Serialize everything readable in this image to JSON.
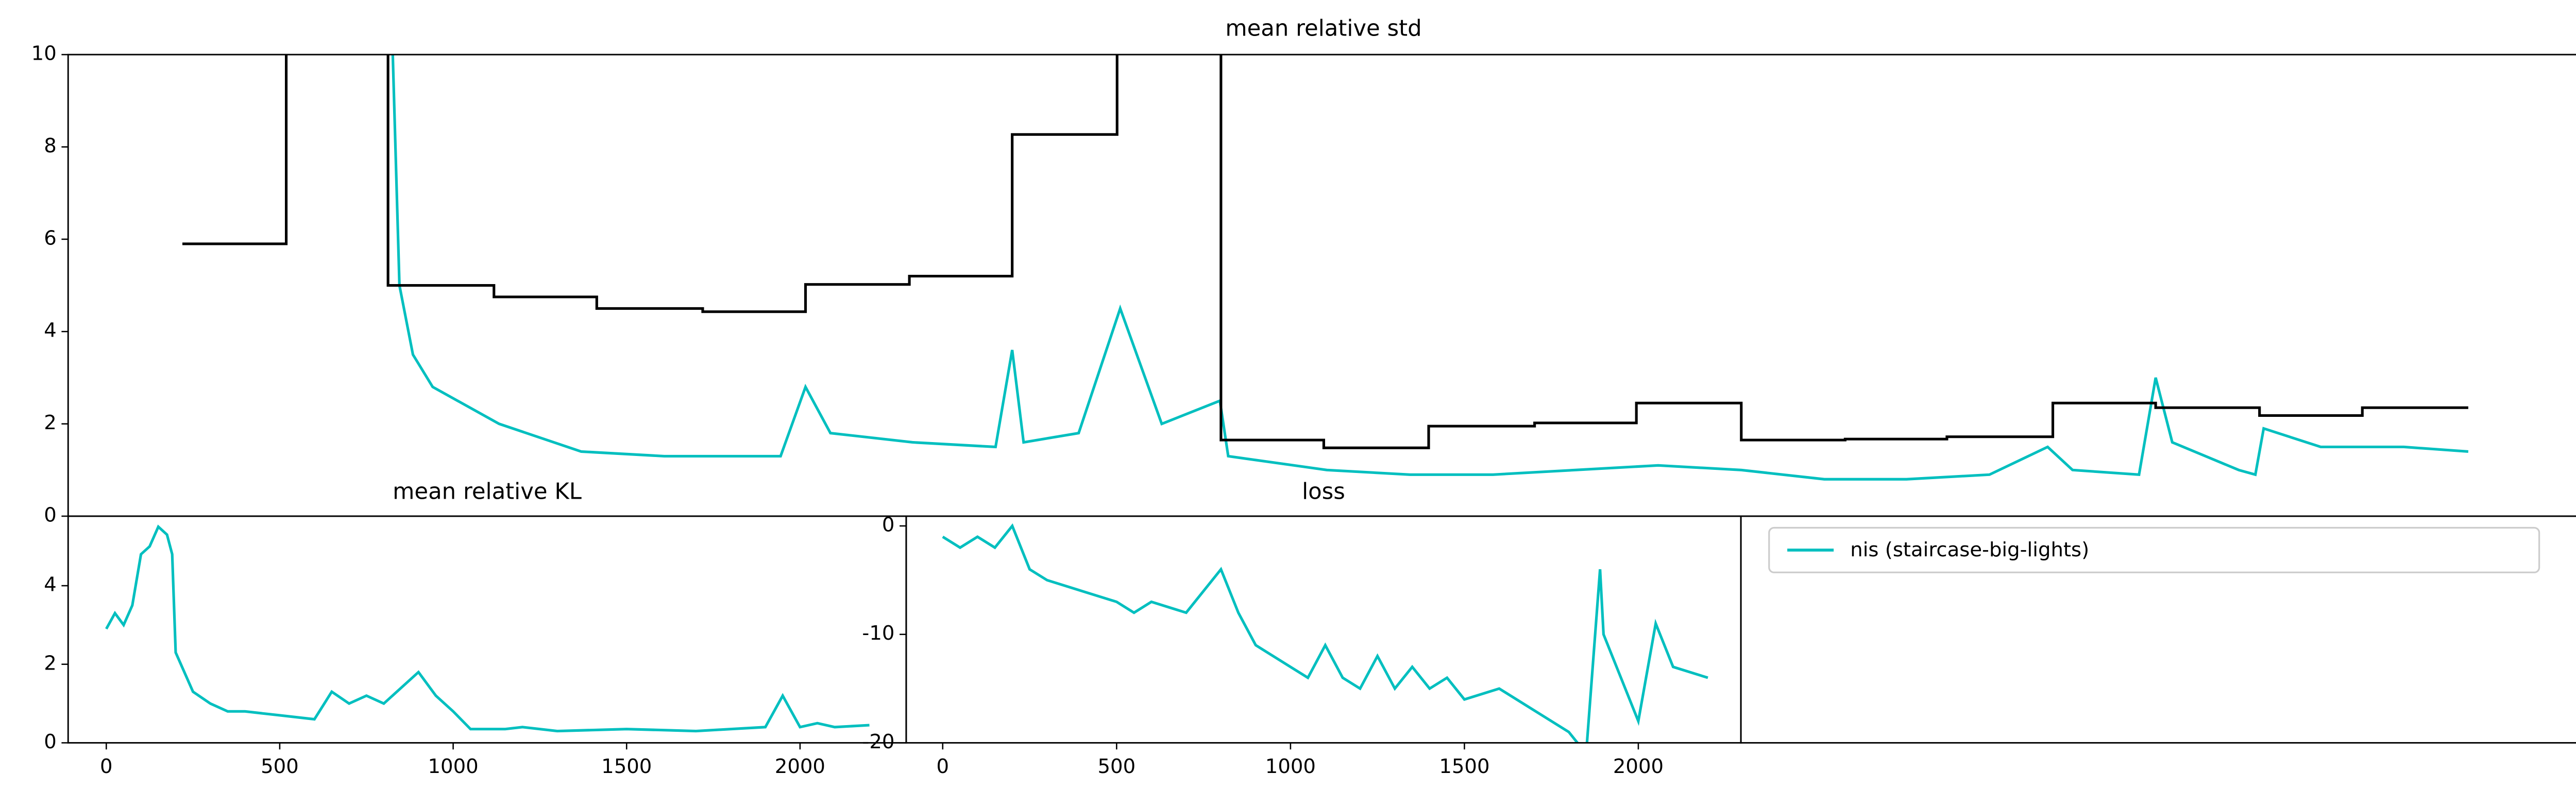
{
  "chart_data": [
    {
      "type": "line",
      "title": "mean relative std",
      "xlim": [
        -110,
        2306
      ],
      "ylim": [
        0,
        10
      ],
      "yticks": [
        0,
        2,
        4,
        6,
        8,
        10
      ],
      "series": [
        {
          "name": "nis (staircase-big-lights)",
          "color": "#00bfbf",
          "x": [
            200,
            209,
            222,
            241,
            305,
            384,
            464,
            512,
            576,
            600,
            624,
            703,
            783,
            799,
            810,
            863,
            903,
            943,
            999,
            1007,
            1102,
            1182,
            1262,
            1341,
            1421,
            1501,
            1581,
            1660,
            1740,
            1796,
            1820,
            1884,
            1900,
            1916,
            1980,
            1996,
            2004,
            2059,
            2139,
            2201
          ],
          "values": [
            12,
            5.0,
            3.5,
            2.8,
            2.0,
            1.4,
            1.3,
            1.3,
            1.3,
            2.8,
            1.8,
            1.6,
            1.5,
            3.6,
            1.6,
            1.8,
            4.5,
            2.0,
            2.5,
            1.3,
            1.0,
            0.9,
            0.9,
            1.0,
            1.1,
            1.0,
            0.8,
            0.8,
            0.9,
            1.5,
            1.0,
            0.9,
            3.0,
            1.6,
            1.0,
            0.9,
            1.9,
            1.5,
            1.5,
            1.4
          ]
        },
        {
          "color": "#000000",
          "x": [
            0,
            100,
            100,
            198,
            198,
            300,
            300,
            399,
            399,
            501,
            501,
            600,
            600,
            700,
            700,
            799,
            799,
            900,
            900,
            1000,
            1000,
            1099,
            1099,
            1200,
            1200,
            1302,
            1302,
            1400,
            1400,
            1501,
            1501,
            1601,
            1601,
            1699,
            1699,
            1801,
            1801,
            1900,
            1900,
            2000,
            2000,
            2099,
            2099,
            2201
          ],
          "values": [
            5.9,
            5.9,
            15,
            15,
            5.0,
            5.0,
            4.75,
            4.75,
            4.5,
            4.5,
            4.43,
            4.43,
            5.02,
            5.02,
            5.2,
            5.2,
            8.27,
            8.27,
            15,
            15,
            1.65,
            1.65,
            1.48,
            1.48,
            1.95,
            1.95,
            2.02,
            2.02,
            2.45,
            2.45,
            1.65,
            1.65,
            1.67,
            1.67,
            1.72,
            1.72,
            2.45,
            2.45,
            2.35,
            2.35,
            2.18,
            2.18,
            2.35,
            2.35
          ]
        }
      ]
    },
    {
      "type": "line",
      "title": "mean relative KL",
      "xlim": [
        -110,
        2306
      ],
      "ylim": [
        0,
        5.77
      ],
      "yticks": [
        0,
        2,
        4
      ],
      "xticks": [
        0,
        500,
        1000,
        1500,
        2000
      ],
      "series": [
        {
          "color": "#00bfbf",
          "x": [
            0,
            25,
            50,
            75,
            100,
            125,
            150,
            175,
            190,
            200,
            250,
            300,
            350,
            400,
            500,
            600,
            650,
            700,
            750,
            800,
            900,
            950,
            1000,
            1050,
            1100,
            1150,
            1200,
            1250,
            1300,
            1500,
            1700,
            1800,
            1900,
            1950,
            2000,
            2050,
            2100,
            2200
          ],
          "values": [
            2.9,
            3.3,
            3.0,
            3.5,
            4.8,
            5.0,
            5.5,
            5.3,
            4.8,
            2.3,
            1.3,
            1.0,
            0.8,
            0.8,
            0.7,
            0.6,
            1.3,
            1.0,
            1.2,
            1.0,
            1.8,
            1.2,
            0.8,
            0.35,
            0.35,
            0.35,
            0.4,
            0.35,
            0.3,
            0.35,
            0.3,
            0.35,
            0.4,
            1.2,
            0.4,
            0.5,
            0.4,
            0.45
          ]
        }
      ]
    },
    {
      "type": "line",
      "title": "loss",
      "xlim": [
        -105,
        2295
      ],
      "ylim": [
        -20,
        0.9
      ],
      "yticks": [
        -20,
        -10,
        0
      ],
      "xticks": [
        0,
        500,
        1000,
        1500,
        2000
      ],
      "series": [
        {
          "color": "#00bfbf",
          "x": [
            0,
            50,
            100,
            150,
            200,
            250,
            300,
            400,
            500,
            550,
            600,
            700,
            800,
            850,
            900,
            950,
            1000,
            1050,
            1100,
            1150,
            1200,
            1250,
            1300,
            1350,
            1400,
            1450,
            1500,
            1600,
            1700,
            1800,
            1850,
            1890,
            1900,
            1950,
            2000,
            2050,
            2100,
            2200
          ],
          "values": [
            -1,
            -2,
            -1,
            -2,
            0,
            -4,
            -5,
            -6,
            -7,
            -8,
            -7,
            -8,
            -4,
            -8,
            -11,
            -12,
            -13,
            -14,
            -11,
            -14,
            -15,
            -12,
            -15,
            -13,
            -15,
            -14,
            -16,
            -15,
            -17,
            -19,
            -21,
            -4,
            -10,
            -14,
            -18,
            -9,
            -13,
            -14
          ]
        }
      ]
    }
  ]
}
